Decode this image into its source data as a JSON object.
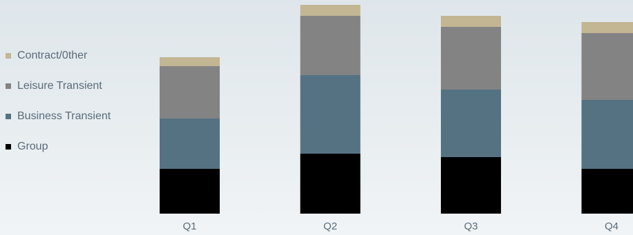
{
  "chart_data": {
    "type": "bar",
    "stacked": true,
    "categories": [
      "Q1",
      "Q2",
      "Q3",
      "Q4"
    ],
    "series": [
      {
        "name": "Group",
        "values": [
          65,
          87,
          82,
          65
        ],
        "color": "#000000"
      },
      {
        "name": "Business Transient",
        "values": [
          73,
          114,
          98,
          100
        ],
        "color": "#557282"
      },
      {
        "name": "Leisure Transient",
        "values": [
          76,
          86,
          91,
          97
        ],
        "color": "#838384"
      },
      {
        "name": "Contract/0ther",
        "values": [
          13,
          16,
          16,
          16
        ],
        "color": "#c2b693"
      }
    ],
    "legend": {
      "position": "left",
      "order": [
        "Contract/0ther",
        "Leisure Transient",
        "Business Transient",
        "Group"
      ]
    },
    "ylim": [
      0,
      310
    ],
    "grid": false,
    "title": "",
    "xlabel": "",
    "ylabel": ""
  }
}
